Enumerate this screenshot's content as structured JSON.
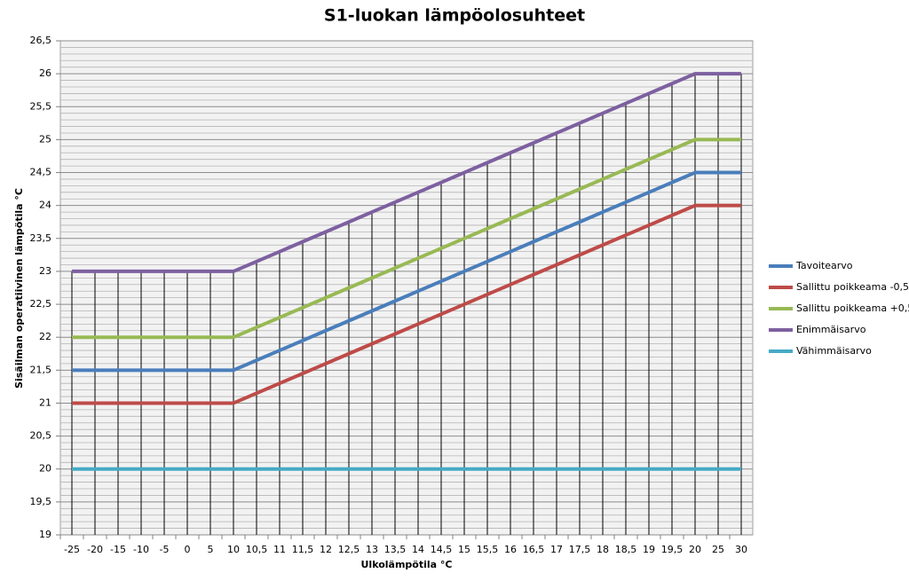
{
  "chart_data": {
    "type": "line",
    "title": "S1-luokan lämpöolosuhteet",
    "x_label": "Ulkolämpötila  °C",
    "y_label": "Sisäilman operatiivinen lämpötila °C",
    "categories": [
      "-25",
      "-20",
      "-15",
      "-10",
      "-5",
      "0",
      "5",
      "10",
      "10,5",
      "11",
      "11,5",
      "12",
      "12,5",
      "13",
      "13,5",
      "14",
      "14,5",
      "15",
      "15,5",
      "16",
      "16,5",
      "17",
      "17,5",
      "18",
      "18,5",
      "19",
      "19,5",
      "20",
      "25",
      "30"
    ],
    "series": [
      {
        "name": "Tavoitearvo",
        "color": "#4a7ebb",
        "values": [
          21.5,
          21.5,
          21.5,
          21.5,
          21.5,
          21.5,
          21.5,
          21.5,
          21.65,
          21.8,
          21.95,
          22.1,
          22.25,
          22.4,
          22.55,
          22.7,
          22.85,
          23,
          23.15,
          23.3,
          23.45,
          23.6,
          23.75,
          23.9,
          24.05,
          24.2,
          24.35,
          24.5,
          24.5,
          24.5
        ]
      },
      {
        "name": "Sallittu poikkeama -0,5",
        "color": "#be4b48",
        "values": [
          21,
          21,
          21,
          21,
          21,
          21,
          21,
          21,
          21.15,
          21.3,
          21.45,
          21.6,
          21.75,
          21.9,
          22.05,
          22.2,
          22.35,
          22.5,
          22.65,
          22.8,
          22.95,
          23.1,
          23.25,
          23.4,
          23.55,
          23.7,
          23.85,
          24,
          24,
          24
        ]
      },
      {
        "name": "Sallittu poikkeama +0,5",
        "color": "#98b954",
        "values": [
          22,
          22,
          22,
          22,
          22,
          22,
          22,
          22,
          22.15,
          22.3,
          22.45,
          22.6,
          22.75,
          22.9,
          23.05,
          23.2,
          23.35,
          23.5,
          23.65,
          23.8,
          23.95,
          24.1,
          24.25,
          24.4,
          24.55,
          24.7,
          24.85,
          25,
          25,
          25
        ]
      },
      {
        "name": "Enimmäisarvo",
        "color": "#7d60a0",
        "values": [
          23,
          23,
          23,
          23,
          23,
          23,
          23,
          23,
          23.15,
          23.3,
          23.45,
          23.6,
          23.75,
          23.9,
          24.05,
          24.2,
          24.35,
          24.5,
          24.65,
          24.8,
          24.95,
          25.1,
          25.25,
          25.4,
          25.55,
          25.7,
          25.85,
          26,
          26,
          26
        ]
      },
      {
        "name": "Vähimmäisarvo",
        "color": "#46aac5",
        "values": [
          20,
          20,
          20,
          20,
          20,
          20,
          20,
          20,
          20,
          20,
          20,
          20,
          20,
          20,
          20,
          20,
          20,
          20,
          20,
          20,
          20,
          20,
          20,
          20,
          20,
          20,
          20,
          20,
          20,
          20
        ]
      }
    ],
    "ylim": [
      19,
      26.5
    ],
    "yticks": [
      19,
      {
        "value": 19.5,
        "label": "19,5"
      },
      20,
      {
        "value": 20.5,
        "label": "20,5"
      },
      21,
      {
        "value": 21.5,
        "label": "21,5"
      },
      22,
      {
        "value": 22.5,
        "label": "22,5"
      },
      23,
      {
        "value": 23.5,
        "label": "23,5"
      },
      24,
      {
        "value": 24.5,
        "label": "24,5"
      },
      25,
      {
        "value": 25.5,
        "label": "25,5"
      },
      26,
      {
        "value": 26.5,
        "label": "26,5"
      }
    ],
    "grid": true,
    "legend": "right"
  }
}
